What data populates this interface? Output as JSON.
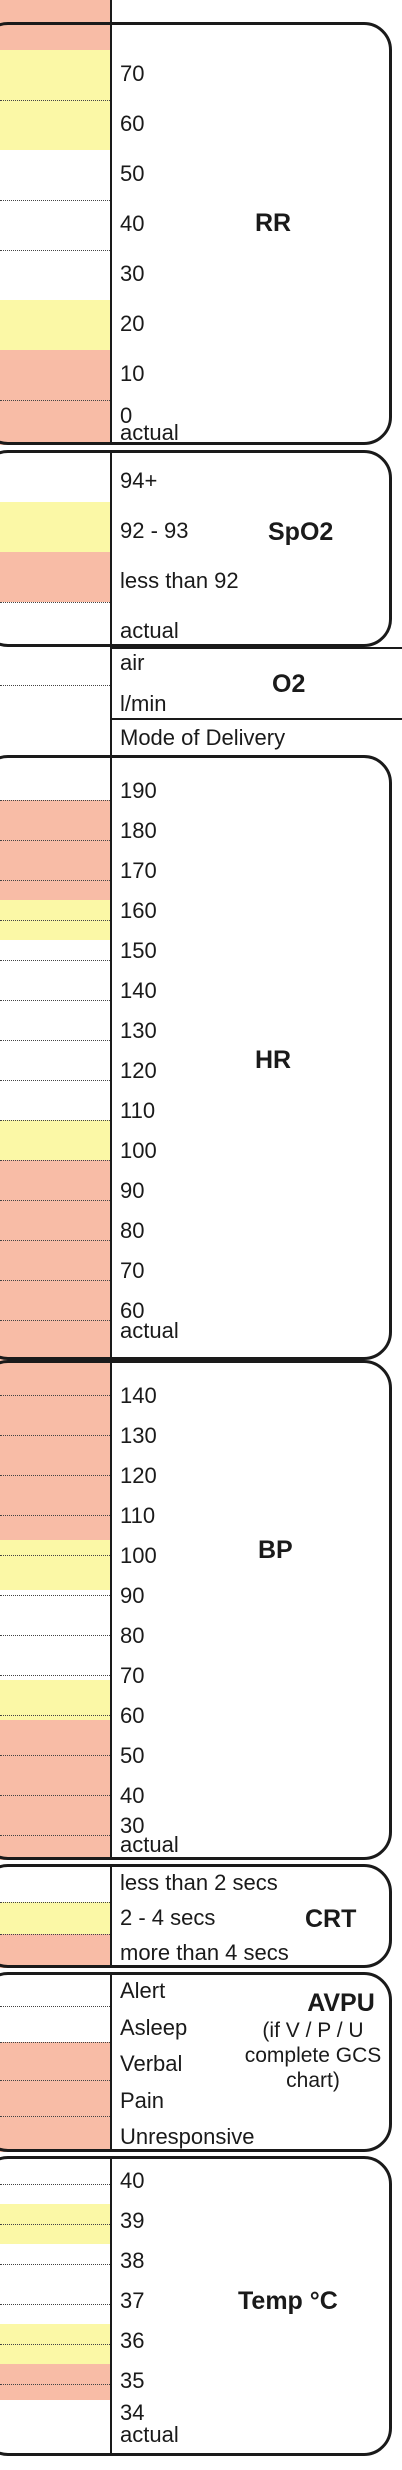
{
  "sections": {
    "rr": {
      "title": "RR",
      "labels": [
        "70",
        "60",
        "50",
        "40",
        "30",
        "20",
        "10",
        "0"
      ],
      "actual": "actual"
    },
    "spo2": {
      "title": "SpO2",
      "labels": [
        "94+",
        "92 - 93",
        "less than 92",
        "actual"
      ]
    },
    "o2": {
      "title": "O2",
      "labels": [
        "air",
        "l/min",
        "Mode of Delivery"
      ]
    },
    "hr": {
      "title": "HR",
      "labels": [
        "190",
        "180",
        "170",
        "160",
        "150",
        "140",
        "130",
        "120",
        "110",
        "100",
        "90",
        "80",
        "70",
        "60"
      ],
      "actual": "actual"
    },
    "bp": {
      "title": "BP",
      "labels": [
        "140",
        "130",
        "120",
        "110",
        "100",
        "90",
        "80",
        "70",
        "60",
        "50",
        "40",
        "30"
      ],
      "actual": "actual"
    },
    "crt": {
      "title": "CRT",
      "labels": [
        "less than 2 secs",
        "2 - 4 secs",
        "more than 4 secs"
      ]
    },
    "avpu": {
      "title": "AVPU",
      "note": "(if V / P / U complete GCS chart)",
      "labels": [
        "Alert",
        "Asleep",
        "Verbal",
        "Pain",
        "Unresponsive"
      ]
    },
    "temp": {
      "title": "Temp °C",
      "labels": [
        "40",
        "39",
        "38",
        "37",
        "36",
        "35",
        "34"
      ],
      "actual": "actual"
    }
  },
  "colors": {
    "red_zone": "#f8bca6",
    "yellow_zone": "#fbf8a6",
    "border": "#1a1a1a"
  }
}
